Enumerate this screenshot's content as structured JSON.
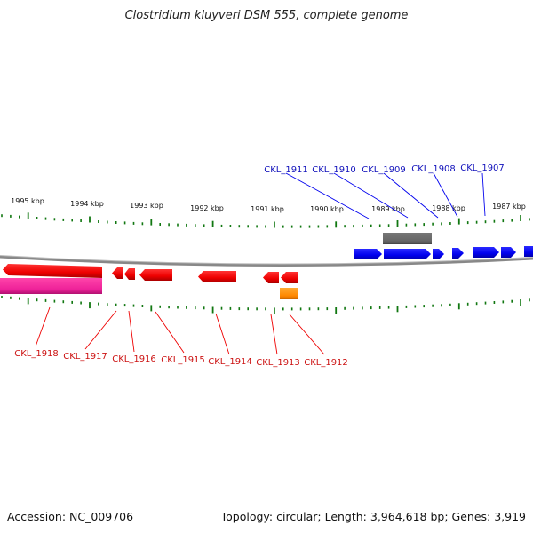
{
  "title": "Clostridium kluyveri DSM 555, complete genome",
  "accession_label": "Accession: NC_009706",
  "stats_label": "Topology: circular; Length: 3,964,618 bp; Genes: 3,919",
  "colors": {
    "forward_gene": "#0000ee",
    "reverse_gene": "#ee0000",
    "magenta_feature": "#ee2299",
    "orange_feature": "#ff8800",
    "gray_feature": "#666666",
    "backbone": "#888888",
    "tick": "#117711",
    "forward_label": "#1111bb",
    "reverse_label": "#cc1111"
  },
  "kbp_labels": [
    "1995 kbp",
    "1994 kbp",
    "1993 kbp",
    "1992 kbp",
    "1991 kbp",
    "1990 kbp",
    "1989 kbp",
    "1988 kbp",
    "1987 kbp"
  ],
  "forward_gene_labels": [
    "CKL_1911",
    "CKL_1910",
    "CKL_1909",
    "CKL_1908",
    "CKL_1907"
  ],
  "reverse_gene_labels": [
    "CKL_1918",
    "CKL_1917",
    "CKL_1916",
    "CKL_1915",
    "CKL_1914",
    "CKL_1913",
    "CKL_1912"
  ]
}
